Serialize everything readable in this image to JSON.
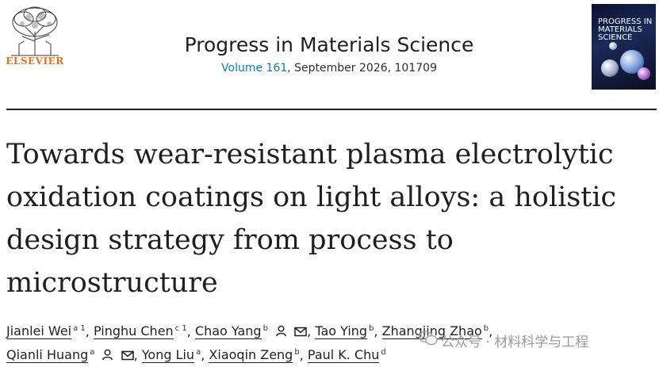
{
  "header": {
    "publisher": "ELSEVIER",
    "journal_title": "Progress in Materials Science",
    "volume_link": "Volume 161",
    "issue_info": ", September 2026, 101709",
    "cover_title": "PROGRESS IN MATERIALS SCIENCE"
  },
  "article": {
    "title": "Towards wear-resistant plasma electrolytic oxidation coatings on light alloys: a holistic design strategy from process to microstructure"
  },
  "authors": [
    {
      "name": "Jianlei Wei",
      "aff": "a 1"
    },
    {
      "name": "Pinghu Chen",
      "aff": "c 1"
    },
    {
      "name": "Chao Yang",
      "aff": "b"
    },
    {
      "name": "Tao Ying",
      "aff": "b"
    },
    {
      "name": "Zhangjing Zhao",
      "aff": "b"
    },
    {
      "name": "Qianli Huang",
      "aff": "a"
    },
    {
      "name": "Yong Liu",
      "aff": "a"
    },
    {
      "name": "Xiaoqin Zeng",
      "aff": "b"
    },
    {
      "name": "Paul K. Chu",
      "aff": "d"
    }
  ],
  "punct": {
    "comma": ","
  },
  "watermark": "公众号 · 材料科学与工程",
  "colors": {
    "publisher_orange": "#e9711c",
    "link_blue": "#0c7dbb",
    "text": "#1f1f1f"
  }
}
